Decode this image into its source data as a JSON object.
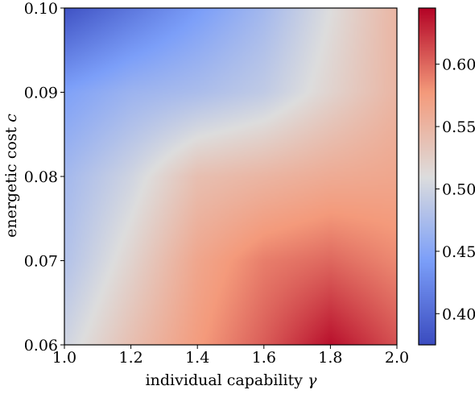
{
  "chart_data": {
    "type": "heatmap",
    "xlabel": "individual capability",
    "xlabel_symbol": "γ",
    "ylabel": "energetic cost",
    "ylabel_symbol": "c",
    "xlim": [
      1.0,
      2.0
    ],
    "ylim": [
      0.06,
      0.1
    ],
    "x_ticks": [
      "1.0",
      "1.2",
      "1.4",
      "1.6",
      "1.8",
      "2.0"
    ],
    "y_ticks": [
      "0.06",
      "0.07",
      "0.08",
      "0.09",
      "0.10"
    ],
    "colorbar": {
      "colormap": "coolwarm",
      "vmin": 0.375,
      "vmax": 0.645,
      "ticks": [
        "0.40",
        "0.45",
        "0.50",
        "0.55",
        "0.60"
      ]
    },
    "grid": false,
    "x": [
      1.0,
      1.2,
      1.4,
      1.6,
      1.8,
      2.0
    ],
    "y": [
      0.06,
      0.07,
      0.08,
      0.09,
      0.1
    ],
    "z": [
      [
        0.5,
        0.54,
        0.575,
        0.605,
        0.64,
        0.61
      ],
      [
        0.48,
        0.52,
        0.565,
        0.59,
        0.6,
        0.585
      ],
      [
        0.47,
        0.5,
        0.54,
        0.55,
        0.56,
        0.565
      ],
      [
        0.445,
        0.465,
        0.475,
        0.49,
        0.52,
        0.55
      ],
      [
        0.38,
        0.41,
        0.44,
        0.47,
        0.51,
        0.55
      ]
    ]
  }
}
